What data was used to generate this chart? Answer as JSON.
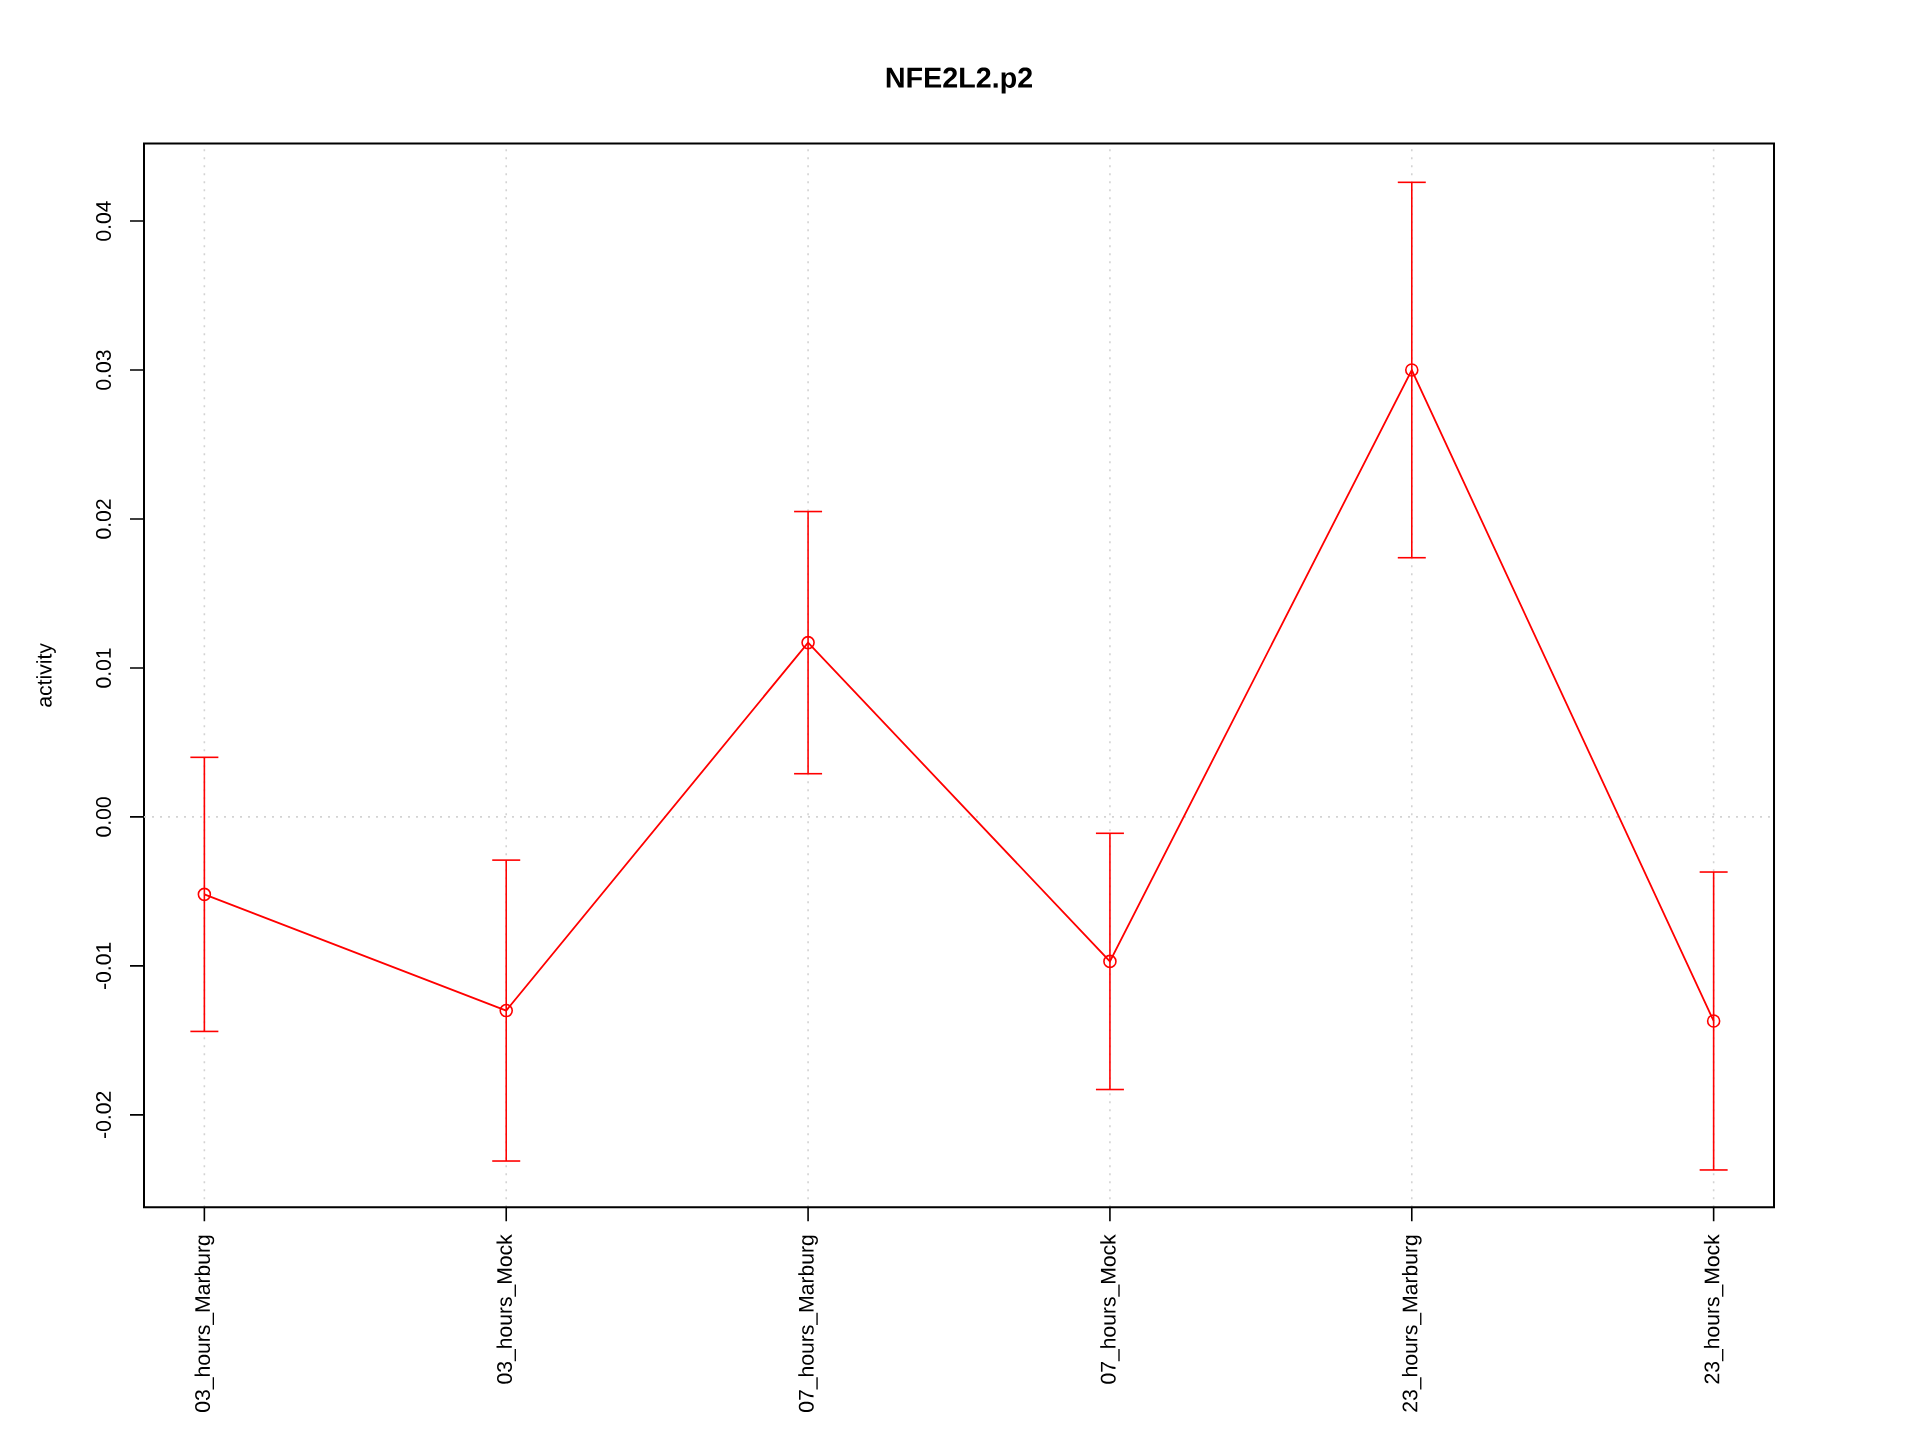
{
  "chart_data": {
    "type": "line",
    "title": "NFE2L2.p2",
    "ylabel": "activity",
    "categories": [
      "03_hours_Marburg",
      "03_hours_Mock",
      "07_hours_Marburg",
      "07_hours_Mock",
      "23_hours_Marburg",
      "23_hours_Mock"
    ],
    "values": [
      -0.0052,
      -0.013,
      0.0117,
      -0.0097,
      0.03,
      -0.0137
    ],
    "errors": [
      0.0092,
      0.0101,
      0.0088,
      0.0086,
      0.0126,
      0.01
    ],
    "color": "#ff0000",
    "marker": "circle",
    "ylim": [
      -0.0262,
      0.0452
    ],
    "yticks": [
      -0.02,
      -0.01,
      {
        "value": 0,
        "label": "0.00"
      },
      0.01,
      0.02,
      0.03,
      0.04
    ],
    "grid": "x",
    "ref_lines": [
      {
        "axis": "y",
        "value": 0,
        "color": "#d3d3d3",
        "line_style": "dotted"
      }
    ]
  }
}
